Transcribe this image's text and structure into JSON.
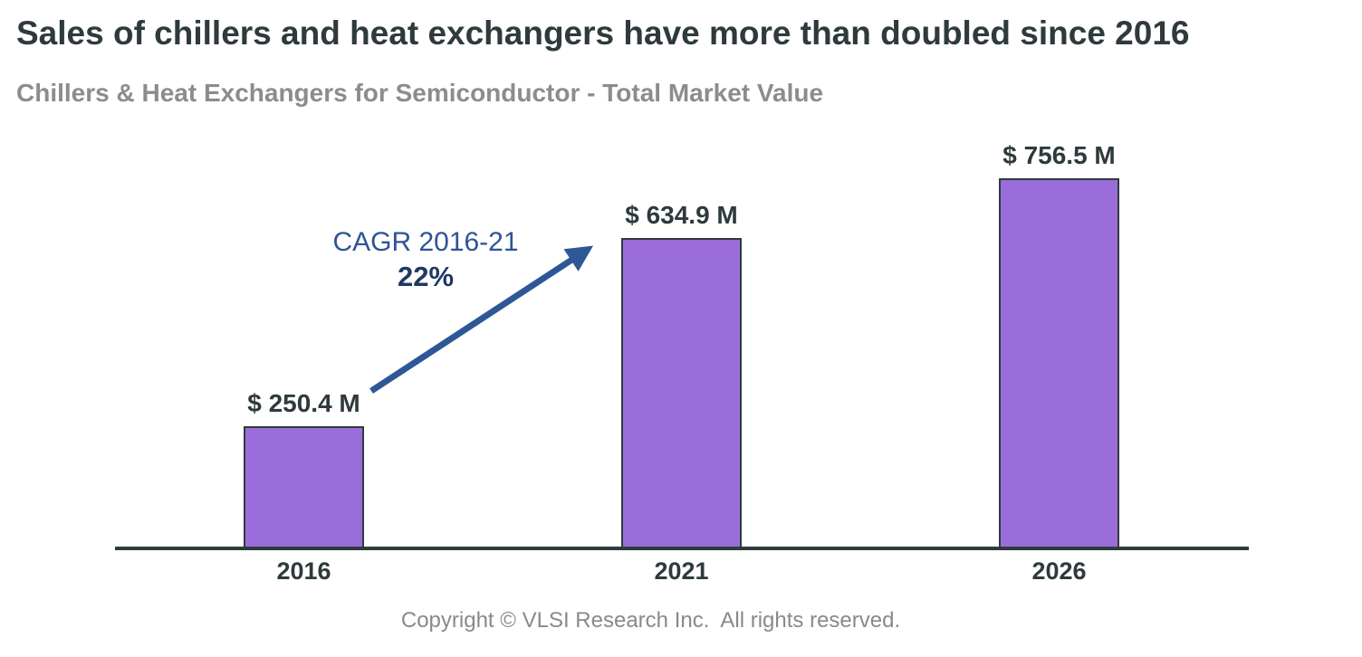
{
  "header": {
    "title": "Sales of chillers and heat exchangers have more than doubled since 2016",
    "subtitle": "Chillers & Heat Exchangers for Semiconductor - Total Market Value"
  },
  "chart_data": {
    "type": "bar",
    "title": "Chillers & Heat Exchangers for Semiconductor - Total Market Value",
    "categories": [
      "2016",
      "2021",
      "2026"
    ],
    "values": [
      250.4,
      634.9,
      756.5
    ],
    "value_labels": [
      "$ 250.4 M",
      "$ 634.9 M",
      "$ 756.5 M"
    ],
    "unit": "USD millions",
    "xlabel": "",
    "ylabel": "",
    "ylim": [
      0,
      756.5
    ],
    "grid": false,
    "legend": "none",
    "annotation": {
      "line1": "CAGR 2016-21",
      "line2": "22%"
    },
    "colors": {
      "bar_fill": "#9A6DDA",
      "bar_border": "#2E3A3C",
      "axis": "#2E3A3C",
      "arrow": "#2E5797",
      "annotation_line1": "#2E5496",
      "annotation_line2": "#1F3864",
      "title_text": "#2E3A3C",
      "subtitle_text": "#8C8C8C",
      "footer_text": "#898989"
    }
  },
  "footer": {
    "copyright": "Copyright © VLSI Research Inc.  All rights reserved."
  }
}
